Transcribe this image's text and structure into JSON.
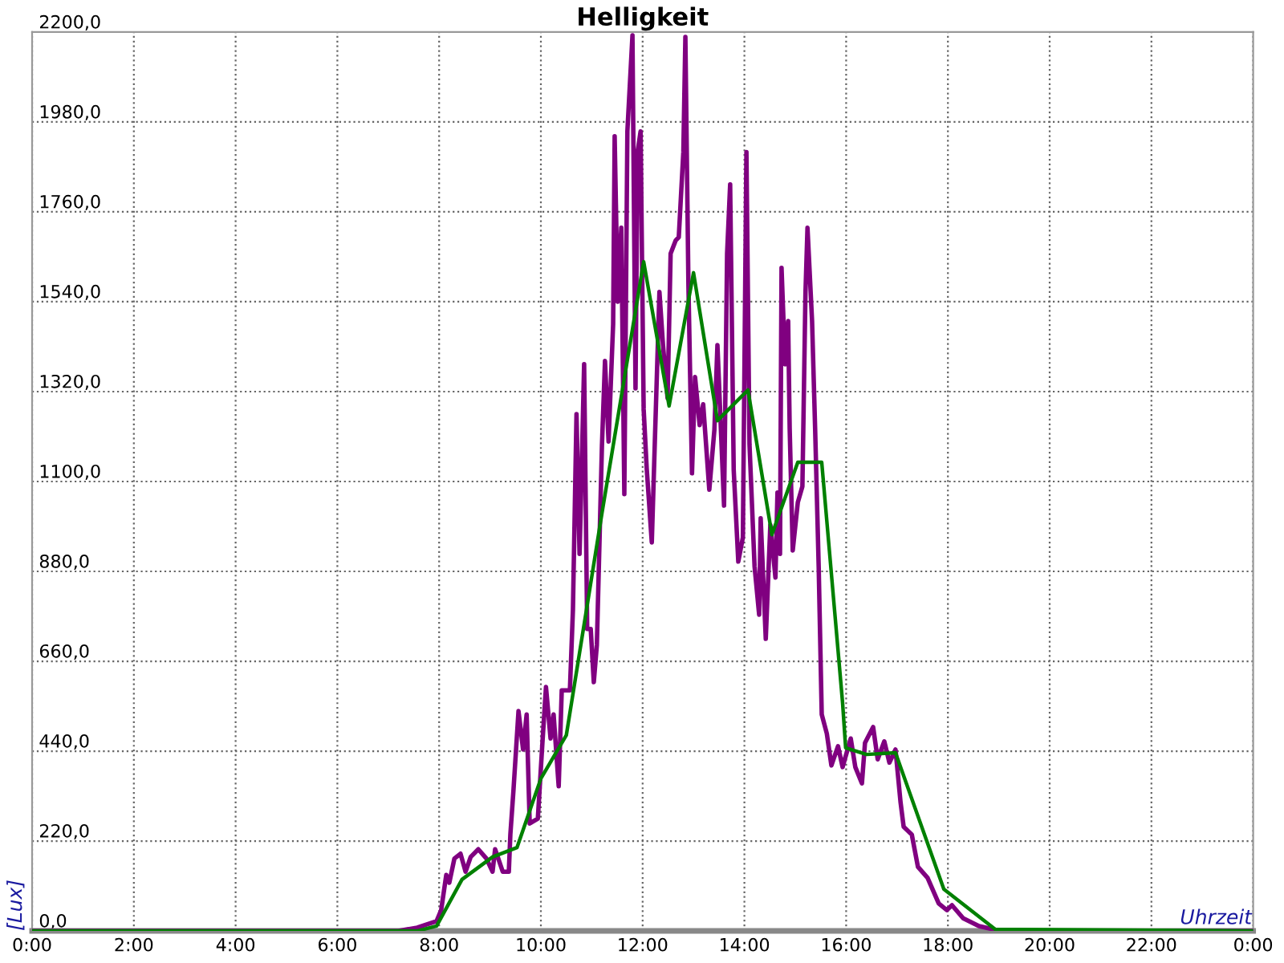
{
  "chart_data": {
    "type": "line",
    "title": "Helligkeit",
    "xlabel": "Uhrzeit",
    "ylabel": "[Lux]",
    "xlim": [
      0,
      24
    ],
    "ylim": [
      0,
      2200
    ],
    "xticks": [
      {
        "value": 0,
        "label": "0:00"
      },
      {
        "value": 2,
        "label": "2:00"
      },
      {
        "value": 4,
        "label": "4:00"
      },
      {
        "value": 6,
        "label": "6:00"
      },
      {
        "value": 8,
        "label": "8:00"
      },
      {
        "value": 10,
        "label": "10:00"
      },
      {
        "value": 12,
        "label": "12:00"
      },
      {
        "value": 14,
        "label": "14:00"
      },
      {
        "value": 16,
        "label": "16:00"
      },
      {
        "value": 18,
        "label": "18:00"
      },
      {
        "value": 20,
        "label": "20:00"
      },
      {
        "value": 22,
        "label": "22:00"
      },
      {
        "value": 24,
        "label": "0:00"
      }
    ],
    "yticks": [
      {
        "value": 0,
        "label": "0,0"
      },
      {
        "value": 220,
        "label": "220,0"
      },
      {
        "value": 440,
        "label": "440,0"
      },
      {
        "value": 660,
        "label": "660,0"
      },
      {
        "value": 880,
        "label": "880,0"
      },
      {
        "value": 1100,
        "label": "1100,0"
      },
      {
        "value": 1320,
        "label": "1320,0"
      },
      {
        "value": 1540,
        "label": "1540,0"
      },
      {
        "value": 1760,
        "label": "1760,0"
      },
      {
        "value": 1980,
        "label": "1980,0"
      },
      {
        "value": 2200,
        "label": "2200,0"
      }
    ],
    "grid": true,
    "line_style": "solid",
    "marker": "none",
    "series": [
      {
        "color": "#800080",
        "x": [
          0,
          7.2,
          7.57,
          7.95,
          8.04,
          8.14,
          8.2,
          8.3,
          8.42,
          8.52,
          8.62,
          8.77,
          8.93,
          9.05,
          9.1,
          9.25,
          9.37,
          9.4,
          9.46,
          9.56,
          9.65,
          9.72,
          9.78,
          9.94,
          10.03,
          10.1,
          10.19,
          10.25,
          10.35,
          10.41,
          10.57,
          10.63,
          10.7,
          10.76,
          10.79,
          10.85,
          10.91,
          10.98,
          11.04,
          11.1,
          11.2,
          11.26,
          11.33,
          11.42,
          11.45,
          11.51,
          11.58,
          11.64,
          11.7,
          11.8,
          11.86,
          11.9,
          11.96,
          12.02,
          12.08,
          12.18,
          12.24,
          12.33,
          12.4,
          12.49,
          12.55,
          12.65,
          12.71,
          12.8,
          12.84,
          12.9,
          12.97,
          13.03,
          13.12,
          13.19,
          13.31,
          13.41,
          13.47,
          13.6,
          13.66,
          13.72,
          13.79,
          13.88,
          13.97,
          14.04,
          14.1,
          14.2,
          14.29,
          14.32,
          14.42,
          14.51,
          14.61,
          14.65,
          14.7,
          14.73,
          14.8,
          14.86,
          14.89,
          14.95,
          15.05,
          15.14,
          15.2,
          15.24,
          15.33,
          15.39,
          15.46,
          15.52,
          15.62,
          15.71,
          15.84,
          15.93,
          16.09,
          16.18,
          16.31,
          16.37,
          16.53,
          16.62,
          16.75,
          16.85,
          16.97,
          17.07,
          17.13,
          17.29,
          17.41,
          17.6,
          17.82,
          17.98,
          18.08,
          18.3,
          18.61,
          19.02,
          24
        ],
        "values": [
          0,
          0,
          8,
          24,
          51,
          137,
          118,
          177,
          189,
          145,
          181,
          200,
          177,
          145,
          200,
          145,
          145,
          236,
          342,
          538,
          444,
          530,
          263,
          275,
          460,
          597,
          471,
          530,
          354,
          589,
          589,
          786,
          1265,
          923,
          1069,
          1387,
          739,
          739,
          609,
          700,
          1187,
          1395,
          1198,
          1485,
          1945,
          1540,
          1721,
          1069,
          1957,
          2192,
          1328,
          1906,
          1957,
          1277,
          1132,
          951,
          1198,
          1564,
          1434,
          1304,
          1658,
          1690,
          1698,
          1906,
          2188,
          1579,
          1120,
          1356,
          1238,
          1289,
          1080,
          1226,
          1434,
          1041,
          1658,
          1827,
          1128,
          904,
          963,
          1906,
          1191,
          892,
          774,
          1010,
          715,
          994,
          865,
          1073,
          923,
          1623,
          1387,
          1493,
          1230,
          931,
          1049,
          1088,
          1560,
          1721,
          1493,
          1230,
          892,
          530,
          483,
          405,
          452,
          401,
          471,
          401,
          361,
          460,
          499,
          420,
          464,
          412,
          444,
          314,
          255,
          236,
          157,
          130,
          67,
          51,
          63,
          31,
          12,
          0,
          0
        ]
      },
      {
        "color": "#008000",
        "x": [
          0,
          7.57,
          7.95,
          8.45,
          9.05,
          9.53,
          10.0,
          10.5,
          11.2,
          12.02,
          12.52,
          13.0,
          13.47,
          14.07,
          14.54,
          15.05,
          15.52,
          15.93,
          15.99,
          16.4,
          16.97,
          17.92,
          18.93,
          24
        ],
        "values": [
          0,
          0,
          12,
          126,
          181,
          204,
          373,
          479,
          1022,
          1638,
          1285,
          1611,
          1249,
          1324,
          970,
          1147,
          1147,
          558,
          448,
          432,
          436,
          102,
          4,
          0
        ]
      }
    ]
  }
}
